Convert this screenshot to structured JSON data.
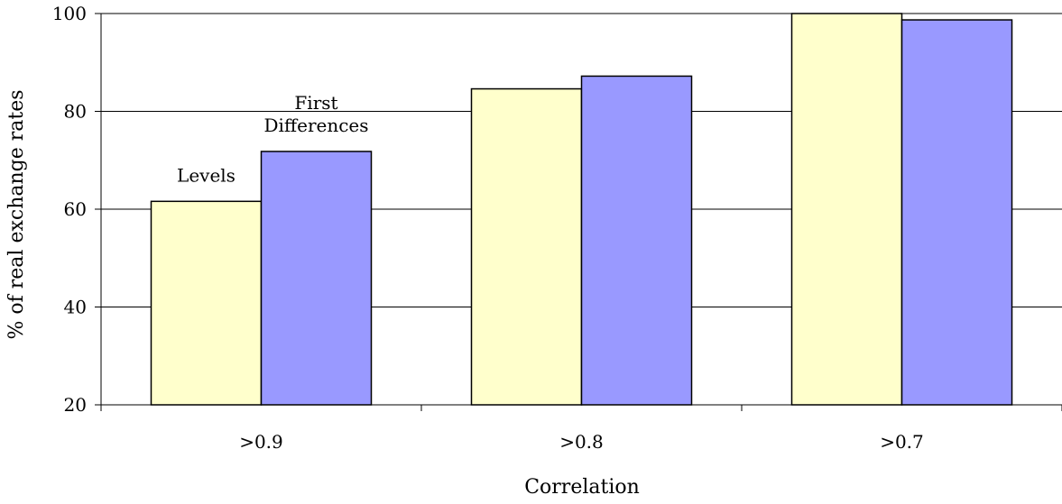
{
  "chart_data": {
    "type": "bar",
    "title": "",
    "xlabel": "Correlation",
    "ylabel": "% of real exchange rates",
    "categories": [
      ">0.9",
      ">0.8",
      ">0.7"
    ],
    "ylim": [
      20,
      100
    ],
    "yticks": [
      "20",
      "40",
      "60",
      "80",
      "100"
    ],
    "grid": true,
    "legend": "none",
    "series": [
      {
        "name": "Levels",
        "values": [
          61.6,
          84.6,
          100
        ],
        "color": "#ffffcc"
      },
      {
        "name": "First Differences",
        "values": [
          71.8,
          87.2,
          98.7
        ],
        "color": "#9999ff"
      }
    ],
    "annotations": [
      {
        "series": 0,
        "category": 0,
        "lines": [
          "Levels"
        ]
      },
      {
        "series": 1,
        "category": 0,
        "lines": [
          "First",
          "Differences"
        ]
      }
    ]
  }
}
